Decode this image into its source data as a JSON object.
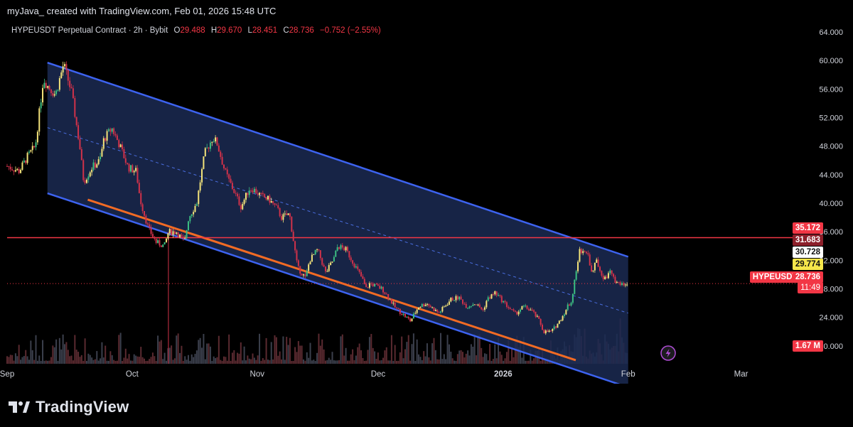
{
  "header": {
    "caption": "myJava_ created with TradingView.com, Feb 01, 2026 15:48 UTC",
    "symbol": "HYPEUSDT Perpetual Contract · 2h · Bybit",
    "ohlc": {
      "o_label": "O",
      "o": "29.488",
      "h_label": "H",
      "h": "29.670",
      "l_label": "L",
      "l": "28.451",
      "c_label": "C",
      "c": "28.736",
      "change": "−0.752 (−2.55%)"
    }
  },
  "colors": {
    "background": "#000000",
    "channel_fill": "#1b2a52",
    "channel_line": "#3d63f0",
    "midline": "#4a6ee0",
    "support_line": "#f26b24",
    "resistance_line": "#f23645",
    "candle_up": "#f3e37a",
    "candle_down": "#d1324a",
    "candle_mid": "#3cbf82",
    "volume_up": "#3b3f4c",
    "volume_down": "#5a2a30"
  },
  "price_tags": {
    "resistance": "35.172",
    "tag_2": "31.683",
    "tag_3": "30.728",
    "tag_4": "29.774",
    "symbol_name": "HYPEUSDT.P",
    "last_price": "28.736",
    "countdown": "11:49",
    "volume": "1.67 M"
  },
  "brand": {
    "name": "TradingView"
  },
  "chart_data": {
    "type": "candlestick",
    "title": "HYPEUSDT Perpetual Contract · 2h · Bybit",
    "ylim": [
      17.5,
      65.5
    ],
    "y_ticks": [
      "64.000",
      "60.000",
      "56.000",
      "52.000",
      "48.000",
      "44.000",
      "40.000",
      "36.000",
      "32.000",
      "28.000",
      "24.000",
      "20.000"
    ],
    "y_tick_values": [
      64,
      60,
      56,
      52,
      48,
      44,
      40,
      36,
      32,
      28,
      24,
      20
    ],
    "x_labels": [
      "Sep",
      "Oct",
      "Nov",
      "Dec",
      "2026",
      "Feb",
      "Mar"
    ],
    "x_label_days": [
      0,
      31,
      62,
      92,
      123,
      154,
      182
    ],
    "x_range_days": [
      0,
      196
    ],
    "price_series": {
      "days": [
        0,
        3,
        5,
        7,
        9,
        10,
        12,
        14,
        16,
        18,
        19,
        21,
        23,
        24,
        26,
        28,
        30,
        32,
        33,
        35,
        37,
        39,
        40,
        42,
        44,
        45,
        47,
        49,
        51,
        52,
        54,
        55,
        56,
        58,
        60,
        61,
        63,
        65,
        67,
        68,
        70,
        72,
        74,
        75,
        77,
        79,
        81,
        82,
        84,
        86,
        88,
        89,
        90,
        91,
        93,
        95,
        96,
        98,
        100,
        102,
        104,
        105,
        107,
        110,
        112,
        114,
        116,
        118,
        119,
        121,
        123,
        125,
        126,
        128,
        130,
        132,
        133,
        135,
        137,
        139,
        140,
        142,
        144,
        145,
        146,
        148,
        150,
        151,
        152,
        153,
        154
      ],
      "close": [
        45.2,
        44.5,
        46.5,
        48,
        57.5,
        56.5,
        55.2,
        59.5,
        55.5,
        48,
        43,
        45,
        46,
        49,
        50.5,
        48,
        45,
        44.5,
        40.5,
        36.5,
        34.5,
        34,
        36,
        36,
        34.5,
        38,
        40,
        47,
        49.2,
        48.5,
        44.5,
        43.2,
        42,
        39.5,
        42,
        42,
        41,
        40.5,
        39.2,
        38,
        38.5,
        31,
        29.5,
        32,
        33.5,
        30.2,
        32.2,
        34,
        33.5,
        31.5,
        29.5,
        28,
        28.8,
        28.5,
        28,
        26.5,
        25.5,
        24.5,
        23.5,
        25.5,
        26,
        25.5,
        24.6,
        26.5,
        26.8,
        25.5,
        26,
        25,
        26.5,
        27.5,
        26.2,
        25,
        24.5,
        25.5,
        25,
        23.5,
        22,
        22,
        23.5,
        25.5,
        26.5,
        33.5,
        33,
        30,
        32,
        29.5,
        30.5,
        28.7,
        28.7,
        28.7,
        28.7
      ]
    },
    "channel": {
      "upper": [
        {
          "day": 10,
          "price": 59.7
        },
        {
          "day": 154,
          "price": 32.5
        }
      ],
      "lower": [
        {
          "day": 10,
          "price": 41.4
        },
        {
          "day": 154,
          "price": 14.2
        }
      ],
      "middle": [
        {
          "day": 10,
          "price": 50.6
        },
        {
          "day": 154,
          "price": 24.6
        }
      ]
    },
    "support_line": [
      {
        "day": 20,
        "price": 40.5
      },
      {
        "day": 141,
        "price": 18.0
      }
    ],
    "resistance_level": 35.172,
    "last_price": 28.736
  }
}
